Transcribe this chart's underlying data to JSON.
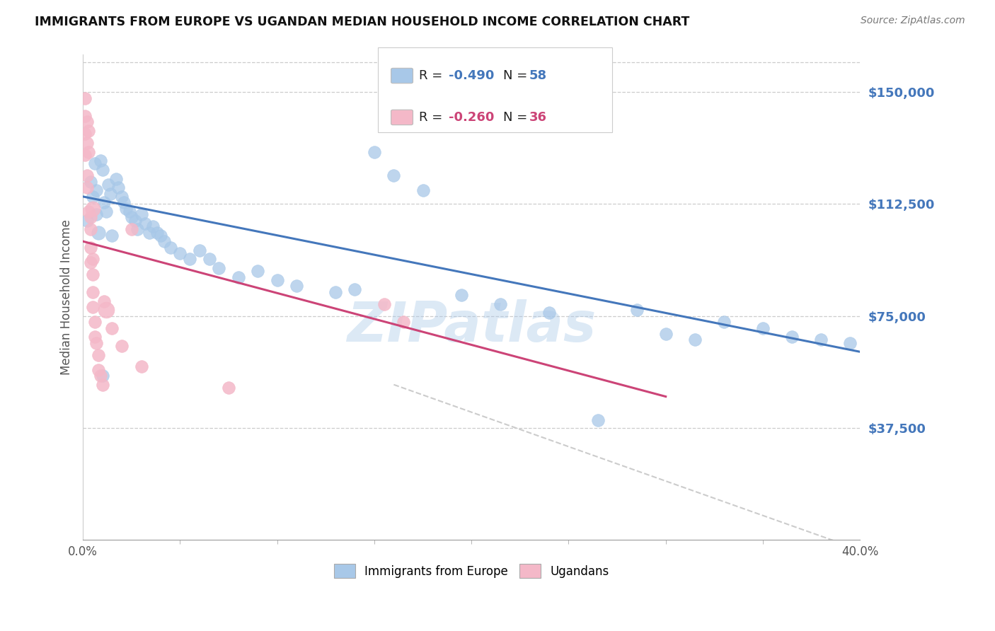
{
  "title": "IMMIGRANTS FROM EUROPE VS UGANDAN MEDIAN HOUSEHOLD INCOME CORRELATION CHART",
  "source": "Source: ZipAtlas.com",
  "ylabel": "Median Household Income",
  "ytick_labels": [
    "$37,500",
    "$75,000",
    "$112,500",
    "$150,000"
  ],
  "ytick_values": [
    37500,
    75000,
    112500,
    150000
  ],
  "ymin": 0,
  "ymax": 162500,
  "xmin": 0.0,
  "xmax": 0.4,
  "blue_color": "#a8c8e8",
  "pink_color": "#f4b8c8",
  "blue_line_color": "#4477bb",
  "pink_line_color": "#cc4477",
  "dashed_line_color": "#cccccc",
  "watermark": "ZIPatlas",
  "label_blue": "Immigrants from Europe",
  "label_pink": "Ugandans",
  "blue_points": [
    [
      0.002,
      107000,
      18
    ],
    [
      0.004,
      120000,
      18
    ],
    [
      0.005,
      115000,
      18
    ],
    [
      0.006,
      126000,
      18
    ],
    [
      0.007,
      117000,
      18
    ],
    [
      0.007,
      109000,
      18
    ],
    [
      0.008,
      103000,
      22
    ],
    [
      0.009,
      127000,
      18
    ],
    [
      0.01,
      124000,
      18
    ],
    [
      0.011,
      113000,
      18
    ],
    [
      0.012,
      110000,
      18
    ],
    [
      0.013,
      119000,
      18
    ],
    [
      0.014,
      116000,
      18
    ],
    [
      0.015,
      102000,
      18
    ],
    [
      0.017,
      121000,
      18
    ],
    [
      0.018,
      118000,
      18
    ],
    [
      0.02,
      115000,
      18
    ],
    [
      0.021,
      113000,
      18
    ],
    [
      0.022,
      111000,
      18
    ],
    [
      0.024,
      110000,
      18
    ],
    [
      0.025,
      108000,
      18
    ],
    [
      0.027,
      107000,
      18
    ],
    [
      0.028,
      104000,
      18
    ],
    [
      0.03,
      109000,
      18
    ],
    [
      0.032,
      106000,
      18
    ],
    [
      0.034,
      103000,
      18
    ],
    [
      0.036,
      105000,
      18
    ],
    [
      0.038,
      103000,
      18
    ],
    [
      0.04,
      102000,
      18
    ],
    [
      0.042,
      100000,
      18
    ],
    [
      0.045,
      98000,
      18
    ],
    [
      0.05,
      96000,
      18
    ],
    [
      0.055,
      94000,
      18
    ],
    [
      0.06,
      97000,
      18
    ],
    [
      0.065,
      94000,
      18
    ],
    [
      0.07,
      91000,
      18
    ],
    [
      0.08,
      88000,
      18
    ],
    [
      0.09,
      90000,
      18
    ],
    [
      0.1,
      87000,
      18
    ],
    [
      0.11,
      85000,
      18
    ],
    [
      0.13,
      83000,
      18
    ],
    [
      0.14,
      84000,
      18
    ],
    [
      0.15,
      130000,
      18
    ],
    [
      0.16,
      122000,
      18
    ],
    [
      0.175,
      117000,
      18
    ],
    [
      0.195,
      82000,
      18
    ],
    [
      0.215,
      79000,
      18
    ],
    [
      0.24,
      76000,
      18
    ],
    [
      0.265,
      40000,
      18
    ],
    [
      0.285,
      77000,
      18
    ],
    [
      0.3,
      69000,
      18
    ],
    [
      0.315,
      67000,
      18
    ],
    [
      0.33,
      73000,
      18
    ],
    [
      0.35,
      71000,
      18
    ],
    [
      0.365,
      68000,
      18
    ],
    [
      0.38,
      67000,
      18
    ],
    [
      0.395,
      66000,
      18
    ],
    [
      0.01,
      55000,
      18
    ]
  ],
  "pink_points": [
    [
      0.001,
      148000,
      18
    ],
    [
      0.001,
      142000,
      18
    ],
    [
      0.001,
      136000,
      18
    ],
    [
      0.001,
      129000,
      18
    ],
    [
      0.002,
      140000,
      18
    ],
    [
      0.002,
      133000,
      18
    ],
    [
      0.002,
      122000,
      18
    ],
    [
      0.002,
      118000,
      18
    ],
    [
      0.003,
      137000,
      18
    ],
    [
      0.003,
      130000,
      18
    ],
    [
      0.003,
      110000,
      18
    ],
    [
      0.004,
      108000,
      18
    ],
    [
      0.004,
      104000,
      18
    ],
    [
      0.004,
      98000,
      18
    ],
    [
      0.004,
      93000,
      18
    ],
    [
      0.005,
      111000,
      26
    ],
    [
      0.005,
      94000,
      18
    ],
    [
      0.005,
      89000,
      18
    ],
    [
      0.005,
      83000,
      18
    ],
    [
      0.005,
      78000,
      18
    ],
    [
      0.006,
      73000,
      18
    ],
    [
      0.006,
      68000,
      18
    ],
    [
      0.007,
      66000,
      18
    ],
    [
      0.008,
      62000,
      18
    ],
    [
      0.008,
      57000,
      18
    ],
    [
      0.009,
      55000,
      18
    ],
    [
      0.01,
      52000,
      18
    ],
    [
      0.011,
      80000,
      18
    ],
    [
      0.012,
      77000,
      30
    ],
    [
      0.015,
      71000,
      18
    ],
    [
      0.02,
      65000,
      18
    ],
    [
      0.025,
      104000,
      18
    ],
    [
      0.03,
      58000,
      18
    ],
    [
      0.075,
      51000,
      18
    ],
    [
      0.155,
      79000,
      18
    ],
    [
      0.165,
      73000,
      18
    ]
  ],
  "blue_regression": [
    0.0,
    0.4,
    115000,
    63000
  ],
  "pink_regression": [
    0.0,
    0.3,
    100000,
    48000
  ],
  "dashed_regression": [
    0.16,
    0.42,
    52000,
    -8000
  ]
}
